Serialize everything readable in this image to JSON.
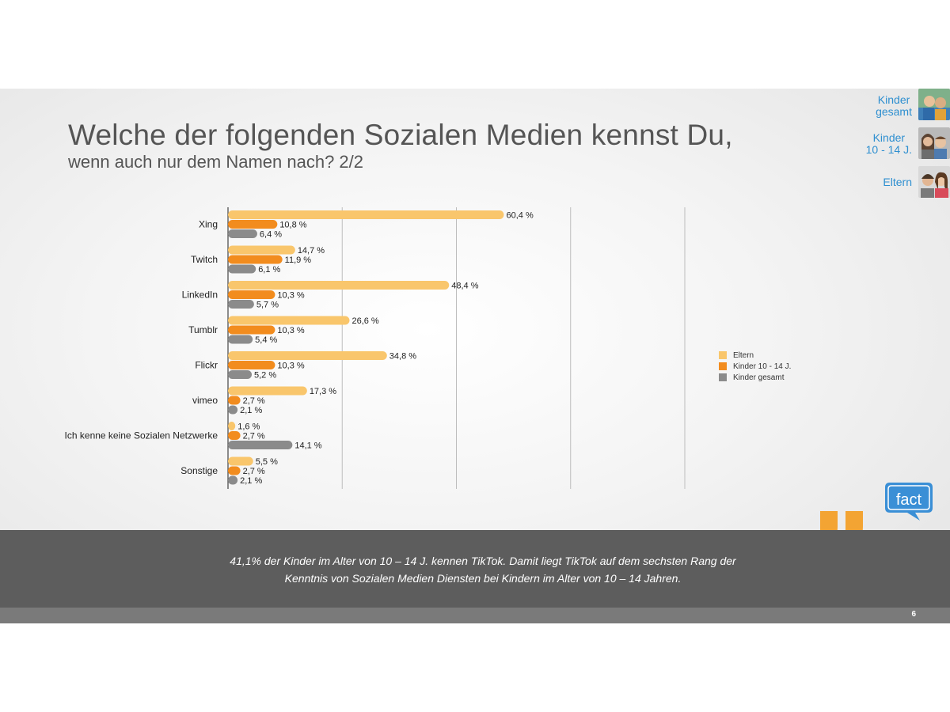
{
  "header": {
    "title": "Welche der folgenden Sozialen Medien kennst Du,",
    "subtitle": "wenn auch nur dem Namen nach? 2/2"
  },
  "nav": {
    "items": [
      {
        "label_line1": "Kinder",
        "label_line2": "gesamt"
      },
      {
        "label_line1": "Kinder",
        "label_line2": "10 - 14 J."
      },
      {
        "label_line1": "Eltern",
        "label_line2": ""
      }
    ]
  },
  "chart_data": {
    "type": "bar",
    "orientation": "horizontal",
    "categories": [
      "Xing",
      "Twitch",
      "LinkedIn",
      "Tumblr",
      "Flickr",
      "vimeo",
      "Ich kenne keine Sozialen Netzwerke",
      "Sonstige"
    ],
    "series": [
      {
        "name": "Eltern",
        "color": "#f9c66c",
        "values": [
          60.4,
          14.7,
          48.4,
          26.6,
          34.8,
          17.3,
          1.6,
          5.5
        ],
        "labels": [
          "60,4 %",
          "14,7 %",
          "48,4 %",
          "26,6 %",
          "34,8 %",
          "17,3 %",
          "1,6 %",
          "5,5 %"
        ]
      },
      {
        "name": "Kinder 10 - 14 J.",
        "color": "#f28c1e",
        "values": [
          10.8,
          11.9,
          10.3,
          10.3,
          10.3,
          2.7,
          2.7,
          2.7
        ],
        "labels": [
          "10,8 %",
          "11,9 %",
          "10,3 %",
          "10,3 %",
          "10,3 %",
          "2,7 %",
          "2,7 %",
          "2,7 %"
        ]
      },
      {
        "name": "Kinder gesamt",
        "color": "#8b8b8b",
        "values": [
          6.4,
          6.1,
          5.7,
          5.4,
          5.2,
          2.1,
          14.1,
          2.1
        ],
        "labels": [
          "6,4 %",
          "6,1 %",
          "5,7 %",
          "5,4 %",
          "5,2 %",
          "2,1 %",
          "14,1 %",
          "2,1 %"
        ]
      }
    ],
    "xlim": [
      0,
      100
    ],
    "grid": true,
    "legend_position": "right"
  },
  "banner": {
    "line1": "41,1% der Kinder im Alter von 10 – 14 J. kennen TikTok. Damit liegt TikTok auf dem sechsten Rang der",
    "line2": "Kenntnis von Sozialen Medien Diensten bei Kindern im Alter von 10 – 14 Jahren."
  },
  "logo": {
    "text": "fact",
    "color": "#3a8fd6"
  },
  "footer": {
    "page_number": "6"
  }
}
